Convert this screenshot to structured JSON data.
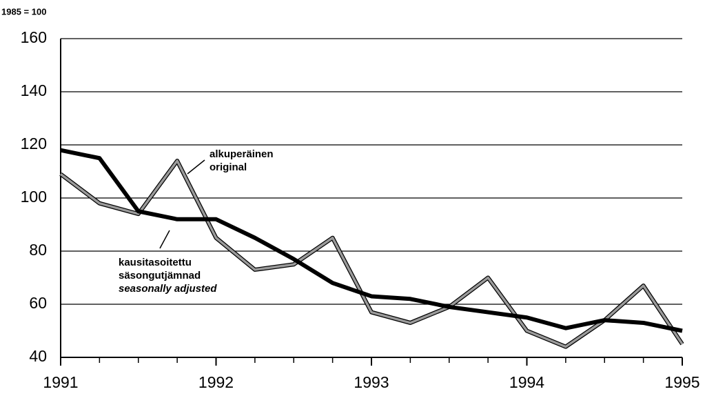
{
  "chart_data": {
    "type": "line",
    "y_label": "1985 = 100",
    "x": [
      1991,
      1991.25,
      1991.5,
      1991.75,
      1992,
      1992.25,
      1992.5,
      1992.75,
      1993,
      1993.25,
      1993.5,
      1993.75,
      1994,
      1994.25,
      1994.5,
      1994.75,
      1995
    ],
    "series": [
      {
        "color": "#9a9a9a",
        "values": [
          109,
          98,
          94,
          114,
          85,
          73,
          75,
          85,
          57,
          53,
          59,
          70,
          50,
          44,
          54,
          67,
          45
        ]
      },
      {
        "color": "#000000",
        "values": [
          118,
          115,
          95,
          92,
          92,
          85,
          77,
          68,
          63,
          62,
          59,
          57,
          55,
          51,
          54,
          53,
          50
        ]
      }
    ],
    "annotations": [
      {
        "lines": [
          "alkuperäinen",
          "original"
        ]
      },
      {
        "lines": [
          "kausitasoitettu",
          "säsongutjämnad",
          "seasonally adjusted"
        ]
      }
    ],
    "xlim": [
      1991,
      1995
    ],
    "xticks": [
      1991,
      1992,
      1993,
      1994,
      1995
    ],
    "ylim": [
      40,
      160
    ],
    "yticks": [
      40,
      60,
      80,
      100,
      120,
      140,
      160
    ],
    "grid": true
  }
}
